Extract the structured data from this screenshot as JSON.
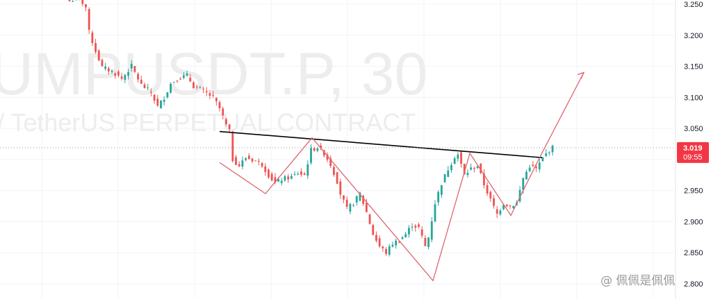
{
  "watermark": {
    "symbol": "UMPUSDT.P, 30",
    "description": "/ TetherUS PERPETUAL CONTRACT"
  },
  "credit": "@ 佩佩是佩佩",
  "colors": {
    "up": "#26a69a",
    "down": "#ef5350",
    "pattern_line": "#e0626e",
    "neckline": "#000000",
    "price_tag": "#f23645",
    "grid": "#f0f3fa",
    "text": "#131722"
  },
  "last_price": {
    "price": "3.019",
    "countdown": "09:55",
    "value": 3.019
  },
  "chart_data": {
    "type": "candlestick",
    "title": "",
    "xlabel": "",
    "ylabel": "",
    "ylim": [
      2.8,
      3.26
    ],
    "y_ticks": [
      "3.250",
      "3.200",
      "3.150",
      "3.100",
      "3.050",
      "3.000",
      "2.950",
      "2.900",
      "2.850",
      "2.800"
    ],
    "y_tick_values": [
      3.25,
      3.2,
      3.15,
      3.1,
      3.05,
      3.0,
      2.95,
      2.9,
      2.85,
      2.8
    ],
    "grid": true,
    "bars": 126,
    "close_path": [
      [
        0,
        3.255
      ],
      [
        3,
        3.26
      ],
      [
        5,
        3.245
      ],
      [
        6,
        3.205
      ],
      [
        8,
        3.175
      ],
      [
        10,
        3.148
      ],
      [
        13,
        3.142
      ],
      [
        16,
        3.13
      ],
      [
        19,
        3.15
      ],
      [
        22,
        3.12
      ],
      [
        25,
        3.108
      ],
      [
        27,
        3.085
      ],
      [
        29,
        3.1
      ],
      [
        31,
        3.122
      ],
      [
        33,
        3.13
      ],
      [
        36,
        3.135
      ],
      [
        38,
        3.118
      ],
      [
        41,
        3.11
      ],
      [
        44,
        3.1
      ],
      [
        46,
        3.082
      ],
      [
        48,
        3.055
      ],
      [
        49,
        3.045
      ],
      [
        50,
        3.0
      ],
      [
        52,
        2.99
      ],
      [
        54,
        3.003
      ],
      [
        57,
        2.998
      ],
      [
        59,
        2.992
      ],
      [
        61,
        2.975
      ],
      [
        63,
        2.962
      ],
      [
        65,
        2.968
      ],
      [
        68,
        2.972
      ],
      [
        70,
        2.978
      ],
      [
        72,
        2.975
      ],
      [
        74,
        3.015
      ],
      [
        76,
        3.02
      ],
      [
        78,
        3.01
      ],
      [
        80,
        2.992
      ],
      [
        82,
        2.965
      ],
      [
        83,
        2.945
      ],
      [
        85,
        2.92
      ],
      [
        87,
        2.93
      ],
      [
        89,
        2.945
      ],
      [
        91,
        2.915
      ],
      [
        93,
        2.88
      ],
      [
        95,
        2.86
      ],
      [
        97,
        2.85
      ],
      [
        99,
        2.865
      ],
      [
        101,
        2.87
      ],
      [
        103,
        2.88
      ],
      [
        105,
        2.895
      ],
      [
        107,
        2.89
      ],
      [
        109,
        2.86
      ],
      [
        110,
        2.875
      ],
      [
        112,
        2.93
      ],
      [
        114,
        2.962
      ],
      [
        116,
        2.985
      ],
      [
        118,
        3.005
      ],
      [
        119,
        3.008
      ],
      [
        121,
        2.975
      ],
      [
        123,
        2.985
      ],
      [
        125,
        2.99
      ],
      [
        127,
        2.96
      ],
      [
        129,
        2.935
      ],
      [
        131,
        2.912
      ],
      [
        133,
        2.93
      ],
      [
        135,
        2.925
      ],
      [
        137,
        2.93
      ],
      [
        139,
        2.97
      ],
      [
        141,
        2.99
      ],
      [
        143,
        2.985
      ],
      [
        145,
        3.002
      ],
      [
        147,
        3.015
      ],
      [
        148,
        3.019
      ]
    ],
    "annotations": {
      "neckline": [
        [
          3.045
        ],
        [
          3.003
        ]
      ],
      "zigzag": [
        2.995,
        2.945,
        3.035,
        2.805,
        3.01,
        2.91,
        3.0,
        3.14
      ]
    }
  }
}
